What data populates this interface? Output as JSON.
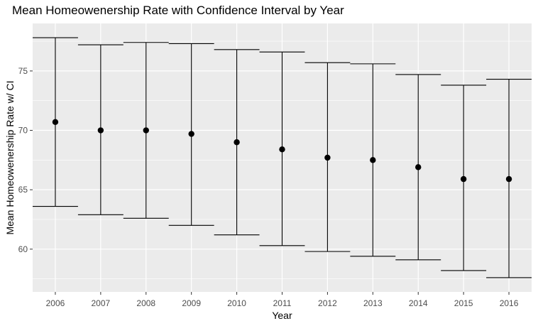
{
  "chart_data": {
    "type": "errorbar",
    "title": "Mean Homeowenership Rate with Confidence Interval by Year",
    "xlabel": "Year",
    "ylabel": "Mean Homeowenership Rate w/ CI",
    "categories": [
      "2006",
      "2007",
      "2008",
      "2009",
      "2010",
      "2011",
      "2012",
      "2013",
      "2014",
      "2015",
      "2016"
    ],
    "values": [
      70.7,
      70.0,
      70.0,
      69.7,
      69.0,
      68.4,
      67.7,
      67.5,
      66.9,
      65.9,
      65.9
    ],
    "lower": [
      63.6,
      62.9,
      62.6,
      62.0,
      61.2,
      60.3,
      59.8,
      59.4,
      59.1,
      58.2,
      57.6
    ],
    "upper": [
      77.8,
      77.2,
      77.4,
      77.3,
      76.8,
      76.6,
      75.7,
      75.6,
      74.7,
      73.8,
      74.3
    ],
    "yticks": [
      60,
      65,
      70,
      75
    ],
    "ylim": [
      56.4,
      79.0
    ],
    "grid": true,
    "colors": {
      "panel": "#ebebeb",
      "grid": "#ffffff",
      "marks": "#000000"
    }
  }
}
